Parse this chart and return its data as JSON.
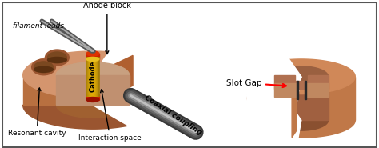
{
  "bg_color": "#ffffff",
  "copper": "#c8845a",
  "copper_top": "#d4956e",
  "copper_side": "#b87040",
  "copper_dark": "#9a5530",
  "copper_inner": "#c07850",
  "copper_shadow": "#a06038",
  "cavity_bg": "#b07858",
  "interaction_bg": "#c8a080",
  "cathode_gold1": "#e8b800",
  "cathode_gold2": "#c89000",
  "cathode_gold3": "#f0d050",
  "cathode_red": "#cc2200",
  "coax_outer": "#404040",
  "coax_mid": "#606060",
  "coax_inner": "#909090",
  "coax_light": "#c0c0c0",
  "filament_col": "#808080",
  "slot_dark": "#222222",
  "right_copper": "#c07848",
  "right_copper_top": "#d08858",
  "right_copper_inner": "#b06838",
  "right_wall_bg": "#c89070",
  "labels": {
    "filament_leads": "filament leads",
    "anode_block": "Anode block",
    "cathode": "Cathode",
    "coaxial": "Coaxial coupling",
    "resonant": "Resonant cavity",
    "interaction": "Interaction space",
    "slot_gap": "Slot Gap"
  },
  "fig_width": 4.74,
  "fig_height": 1.85,
  "dpi": 100
}
